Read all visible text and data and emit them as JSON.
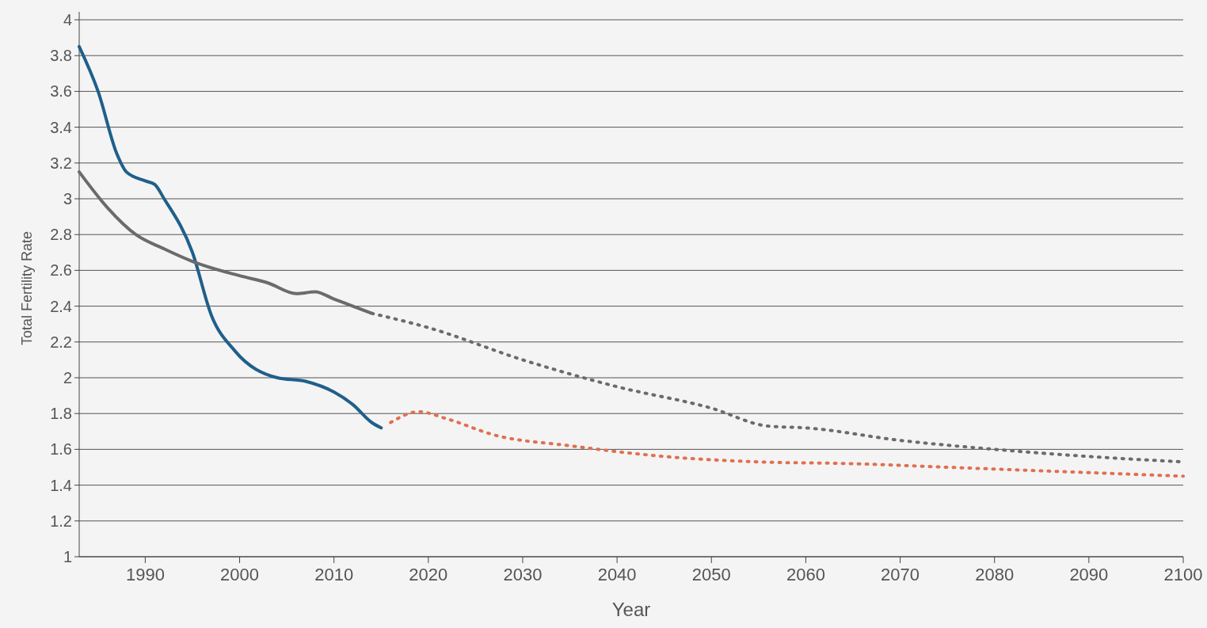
{
  "chart_data": {
    "type": "line",
    "xlabel": "Year",
    "ylabel": "Total Fertility Rate",
    "xlim": [
      1983,
      2100
    ],
    "xticks": [
      1990,
      2000,
      2010,
      2020,
      2030,
      2040,
      2050,
      2060,
      2070,
      2080,
      2090,
      2100
    ],
    "ylim": [
      1,
      4
    ],
    "yticks": [
      1,
      1.2,
      1.4,
      1.6,
      1.8,
      2,
      2.2,
      2.4,
      2.6,
      2.8,
      3,
      3.2,
      3.4,
      3.6,
      3.8,
      4
    ],
    "grid": "y",
    "series": [
      {
        "color": "#1f5f8b",
        "line_style": "solid",
        "x": [
          1983,
          1985,
          1987,
          1988,
          1990,
          1991,
          1992,
          1995,
          1997,
          1999.5,
          2004,
          2007,
          2010,
          2012,
          2014,
          2015
        ],
        "values": [
          3.85,
          3.6,
          3.25,
          3.15,
          3.1,
          3.08,
          3.0,
          2.7,
          2.35,
          2.15,
          2.0,
          1.98,
          1.92,
          1.85,
          1.75,
          1.72
        ]
      },
      {
        "color": "#6b6b6b",
        "line_style": "solid",
        "x": [
          1983,
          1986,
          1989,
          1992,
          1995,
          2000,
          2003,
          2006,
          2008,
          2010,
          2012,
          2014
        ],
        "values": [
          3.15,
          2.95,
          2.8,
          2.72,
          2.65,
          2.57,
          2.53,
          2.47,
          2.48,
          2.44,
          2.4,
          2.36
        ]
      },
      {
        "color": "#6b6b6b",
        "line_style": "dotted",
        "x": [
          2014,
          2020,
          2030,
          2040,
          2050,
          2056,
          2060,
          2070,
          2080,
          2090,
          2100
        ],
        "values": [
          2.36,
          2.28,
          2.1,
          1.95,
          1.83,
          1.73,
          1.72,
          1.65,
          1.6,
          1.56,
          1.53
        ]
      },
      {
        "color": "#e07050",
        "line_style": "dotted",
        "x": [
          2016,
          2019,
          2022,
          2027,
          2035,
          2045,
          2055,
          2065,
          2075,
          2085,
          2100
        ],
        "values": [
          1.75,
          1.81,
          1.77,
          1.68,
          1.62,
          1.56,
          1.53,
          1.52,
          1.5,
          1.48,
          1.45
        ]
      }
    ]
  }
}
